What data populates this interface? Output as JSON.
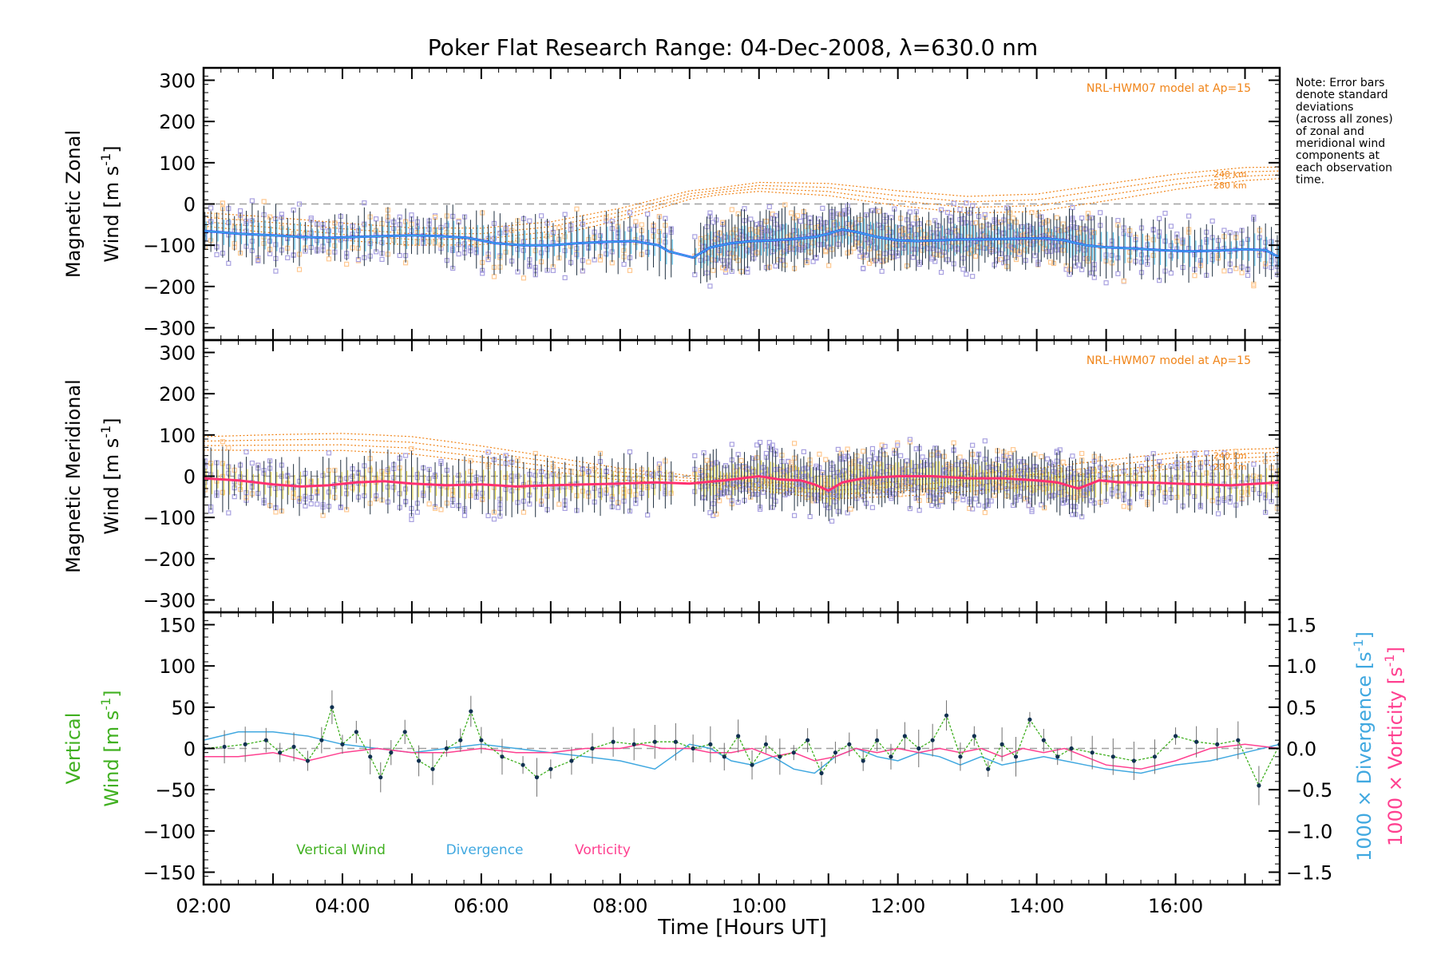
{
  "title": "Poker Flat Research Range: 04-Dec-2008, λ=630.0 nm",
  "note": [
    "Note: Error bars",
    "denote standard",
    "deviations",
    "(across all zones)",
    "of zonal and",
    "meridional wind",
    "components at",
    "each observation",
    "time."
  ],
  "x_axis": {
    "label": "Time [Hours UT]",
    "range_hours": [
      2.0,
      17.5
    ],
    "tick_labels": [
      "02:00",
      "04:00",
      "06:00",
      "08:00",
      "10:00",
      "12:00",
      "14:00",
      "16:00"
    ]
  },
  "colors": {
    "zonal_line": "#2a3cff",
    "zonal_fit": "#40b4e0",
    "meridional_line": "#ff3070",
    "model": "#f08418",
    "scatter": "#a8a0e0",
    "scatter_alt": "#ffc890",
    "vertical_wind": "#40b020",
    "divergence": "#40a8e0",
    "vorticity": "#ff4090",
    "zero_line": "#a0a0a0"
  },
  "chart_data": [
    {
      "type": "line",
      "panel": "zonal",
      "ylabel_line1": "Magnetic Zonal",
      "ylabel_line2": "Wind [m s",
      "ylabel_sup": "-1",
      "ylabel_close": "]",
      "ylim": [
        -330,
        330
      ],
      "y_ticks": [
        300,
        200,
        100,
        0,
        -100,
        -200,
        -300
      ],
      "y_tick_labels": [
        "300",
        "200",
        "100",
        "0",
        "−100",
        "−200",
        "−300"
      ],
      "model_label": "NRL-HWM07 model at Ap=15",
      "model_alt_labels": [
        "240 km",
        "280 km"
      ],
      "series": [
        {
          "role": "mean wind",
          "x": [
            2.0,
            2.5,
            3.0,
            3.4,
            3.8,
            4.2,
            4.6,
            5.0,
            5.4,
            5.8,
            6.2,
            6.6,
            7.0,
            7.4,
            7.8,
            8.2,
            8.55,
            8.7,
            9.05,
            9.3,
            9.6,
            9.9,
            10.2,
            10.5,
            10.8,
            11.0,
            11.2,
            11.4,
            11.7,
            12.0,
            12.3,
            12.6,
            12.9,
            13.2,
            13.5,
            13.8,
            14.1,
            14.4,
            14.7,
            15.0,
            15.4,
            15.8,
            16.2,
            16.6,
            17.0,
            17.3,
            17.5
          ],
          "values": [
            -65,
            -72,
            -76,
            -80,
            -82,
            -80,
            -78,
            -76,
            -78,
            -82,
            -95,
            -100,
            -100,
            -95,
            -92,
            -90,
            -100,
            -115,
            -130,
            -105,
            -95,
            -90,
            -88,
            -85,
            -80,
            -72,
            -62,
            -68,
            -80,
            -88,
            -90,
            -88,
            -86,
            -86,
            -85,
            -84,
            -83,
            -88,
            -100,
            -105,
            -108,
            -112,
            -115,
            -113,
            -110,
            -112,
            -130
          ]
        },
        {
          "role": "model",
          "x": [
            2.0,
            3.0,
            4.0,
            5.0,
            6.0,
            7.0,
            8.0,
            9.0,
            10.0,
            11.0,
            12.0,
            13.0,
            14.0,
            15.0,
            16.0,
            17.0,
            17.5
          ],
          "values": [
            -32,
            -45,
            -60,
            -72,
            -72,
            -55,
            -20,
            25,
            45,
            40,
            20,
            5,
            10,
            35,
            60,
            78,
            80
          ]
        }
      ]
    },
    {
      "type": "line",
      "panel": "meridional",
      "ylabel_line1": "Magnetic Meridional",
      "ylabel_line2": "Wind [m s",
      "ylabel_sup": "-1",
      "ylabel_close": "]",
      "ylim": [
        -330,
        330
      ],
      "y_ticks": [
        300,
        200,
        100,
        0,
        -100,
        -200,
        -300
      ],
      "y_tick_labels": [
        "300",
        "200",
        "100",
        "0",
        "−100",
        "−200",
        "−300"
      ],
      "model_label": "NRL-HWM07 model at Ap=15",
      "model_alt_labels": [
        "240 km",
        "280 km"
      ],
      "series": [
        {
          "role": "mean wind",
          "x": [
            2.0,
            2.5,
            3.0,
            3.4,
            3.8,
            4.2,
            4.6,
            5.0,
            5.5,
            6.0,
            6.5,
            7.0,
            7.5,
            8.0,
            8.5,
            9.0,
            9.5,
            10.0,
            10.3,
            10.6,
            10.8,
            11.0,
            11.2,
            11.5,
            12.0,
            12.5,
            13.0,
            13.5,
            14.0,
            14.3,
            14.6,
            14.9,
            15.2,
            15.6,
            16.0,
            16.4,
            16.8,
            17.2,
            17.5
          ],
          "values": [
            -5,
            -10,
            -20,
            -25,
            -22,
            -15,
            -12,
            -18,
            -22,
            -20,
            -25,
            -22,
            -20,
            -18,
            -15,
            -18,
            -10,
            0,
            -8,
            -10,
            -20,
            -35,
            -15,
            -5,
            0,
            0,
            -5,
            -5,
            -10,
            -15,
            -30,
            -10,
            -15,
            -15,
            -18,
            -20,
            -22,
            -18,
            -15
          ]
        },
        {
          "role": "model",
          "x": [
            2.0,
            3.0,
            4.0,
            5.0,
            6.0,
            7.0,
            8.0,
            9.0,
            10.0,
            11.0,
            12.0,
            13.0,
            14.0,
            15.0,
            16.0,
            17.0,
            17.5
          ],
          "values": [
            85,
            88,
            90,
            82,
            60,
            35,
            10,
            -5,
            -20,
            -35,
            -25,
            -10,
            5,
            25,
            45,
            55,
            58
          ]
        }
      ]
    },
    {
      "type": "line",
      "panel": "vertical",
      "ylabel_line1": "Vertical",
      "ylabel_line2": "Wind [m s",
      "ylabel_sup": "-1",
      "ylabel_close": "]",
      "ylim": [
        -165,
        165
      ],
      "y_ticks": [
        150,
        100,
        50,
        0,
        -50,
        -100,
        -150
      ],
      "y_tick_labels": [
        "150",
        "100",
        "50",
        "0",
        "−50",
        "−100",
        "−150"
      ],
      "y2": {
        "lim": [
          -1.65,
          1.65
        ],
        "ticks": [
          1.5,
          1.0,
          0.5,
          0.0,
          -0.5,
          -1.0,
          -1.5
        ],
        "tick_labels": [
          "1.5",
          "1.0",
          "0.5",
          "0.0",
          "−0.5",
          "−1.0",
          "−1.5"
        ],
        "label_div": "1000 × Divergence [s",
        "label_vort": "1000 × Vorticity [s",
        "label_sup": "-1",
        "label_close": "]"
      },
      "legend": [
        "Vertical Wind",
        "Divergence",
        "Vorticity"
      ],
      "series": [
        {
          "name": "Vertical Wind",
          "x": [
            2.0,
            2.3,
            2.6,
            2.9,
            3.1,
            3.3,
            3.5,
            3.7,
            3.85,
            4.0,
            4.2,
            4.4,
            4.55,
            4.7,
            4.9,
            5.1,
            5.3,
            5.5,
            5.7,
            5.85,
            6.0,
            6.3,
            6.6,
            6.8,
            7.0,
            7.3,
            7.6,
            7.9,
            8.2,
            8.5,
            8.8,
            9.05,
            9.3,
            9.5,
            9.7,
            9.9,
            10.1,
            10.3,
            10.5,
            10.7,
            10.9,
            11.1,
            11.3,
            11.5,
            11.7,
            11.9,
            12.1,
            12.3,
            12.5,
            12.7,
            12.9,
            13.1,
            13.3,
            13.5,
            13.7,
            13.9,
            14.1,
            14.3,
            14.5,
            14.8,
            15.1,
            15.4,
            15.7,
            16.0,
            16.3,
            16.6,
            16.9,
            17.2,
            17.5
          ],
          "values": [
            0,
            2,
            5,
            10,
            -5,
            2,
            -15,
            10,
            50,
            5,
            20,
            -10,
            -35,
            -5,
            20,
            -15,
            -25,
            0,
            10,
            45,
            10,
            -10,
            -20,
            -35,
            -25,
            -15,
            0,
            8,
            5,
            8,
            8,
            0,
            5,
            -10,
            15,
            -20,
            5,
            -10,
            -5,
            10,
            -30,
            -5,
            5,
            -15,
            10,
            -10,
            15,
            0,
            10,
            40,
            -10,
            15,
            -25,
            5,
            -10,
            35,
            10,
            -10,
            0,
            -5,
            -10,
            -15,
            -10,
            15,
            8,
            5,
            10,
            -45,
            5
          ]
        },
        {
          "name": "Divergence",
          "x": [
            2.0,
            2.5,
            3.0,
            3.5,
            4.0,
            4.5,
            5.0,
            5.5,
            6.0,
            6.5,
            7.0,
            7.5,
            8.0,
            8.5,
            9.0,
            9.3,
            9.6,
            9.9,
            10.2,
            10.5,
            10.8,
            11.1,
            11.4,
            11.7,
            12.0,
            12.3,
            12.6,
            12.9,
            13.2,
            13.5,
            13.8,
            14.1,
            14.4,
            14.7,
            15.0,
            15.5,
            16.0,
            16.5,
            17.0,
            17.5
          ],
          "values": [
            0.1,
            0.2,
            0.2,
            0.15,
            0.05,
            0.0,
            -0.05,
            0.0,
            0.05,
            0.0,
            -0.05,
            -0.1,
            -0.15,
            -0.25,
            0.05,
            0.0,
            -0.15,
            -0.2,
            -0.1,
            -0.25,
            -0.3,
            -0.1,
            0.0,
            -0.1,
            -0.15,
            -0.05,
            -0.1,
            -0.2,
            -0.1,
            -0.2,
            -0.15,
            -0.1,
            -0.15,
            -0.2,
            -0.25,
            -0.3,
            -0.2,
            -0.15,
            -0.05,
            0.05
          ]
        },
        {
          "name": "Vorticity",
          "x": [
            2.0,
            2.5,
            3.0,
            3.5,
            4.0,
            4.5,
            5.0,
            5.5,
            6.0,
            6.5,
            7.0,
            7.5,
            8.0,
            8.3,
            8.6,
            9.0,
            9.3,
            9.6,
            9.9,
            10.2,
            10.5,
            10.8,
            11.1,
            11.4,
            11.7,
            12.0,
            12.3,
            12.6,
            12.9,
            13.2,
            13.5,
            13.8,
            14.1,
            14.4,
            14.7,
            15.0,
            15.5,
            16.0,
            16.5,
            17.0,
            17.5
          ],
          "values": [
            -0.1,
            -0.1,
            -0.05,
            -0.15,
            -0.05,
            0.0,
            -0.05,
            -0.05,
            0.0,
            -0.05,
            -0.05,
            0.0,
            0.0,
            0.05,
            0.0,
            0.0,
            -0.05,
            -0.05,
            0.0,
            -0.1,
            -0.05,
            -0.15,
            -0.1,
            0.0,
            -0.05,
            0.0,
            -0.05,
            0.0,
            -0.05,
            0.0,
            -0.1,
            0.0,
            -0.05,
            0.0,
            -0.1,
            -0.2,
            -0.25,
            -0.15,
            0.0,
            0.05,
            0.0
          ]
        }
      ]
    }
  ]
}
